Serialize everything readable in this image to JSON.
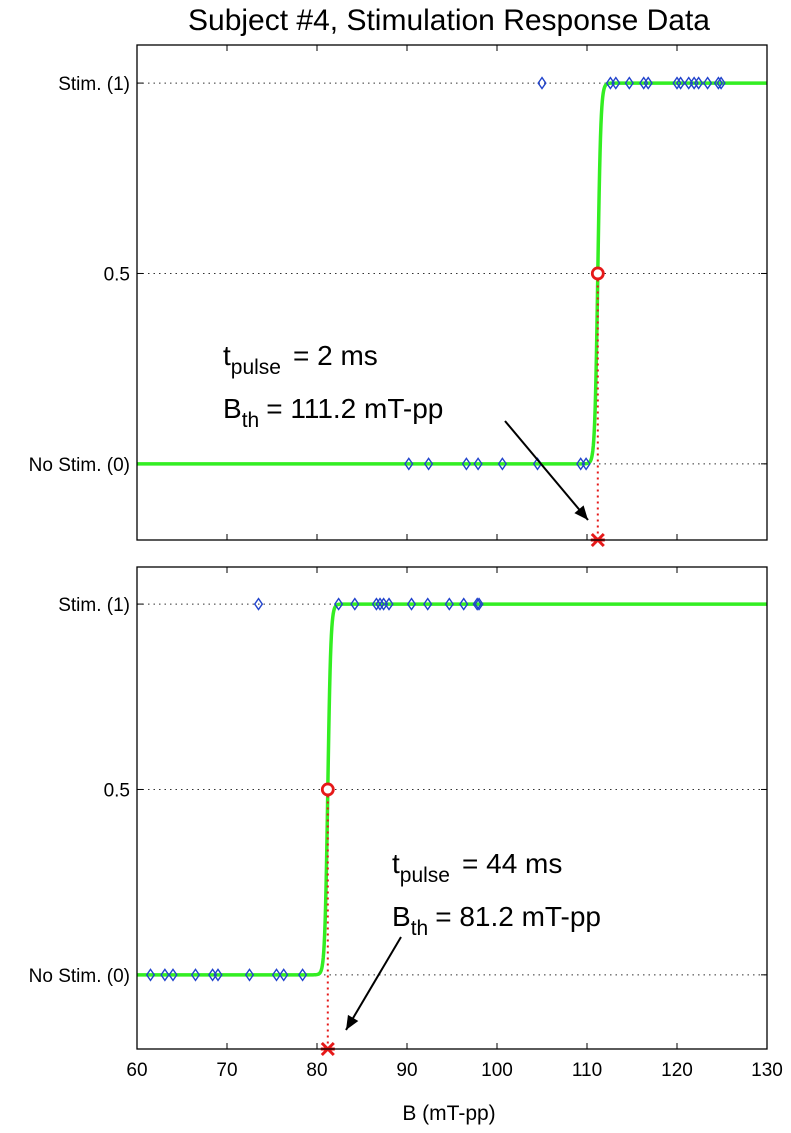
{
  "title": "Subject #4, Stimulation Response Data",
  "colors": {
    "fit": "#33ee22",
    "marker": "#2244cc",
    "threshold": "#e61919",
    "grid": "#333333"
  },
  "chart_data": [
    {
      "type": "scatter",
      "panel": "top",
      "xlim": [
        60,
        130
      ],
      "ylim": [
        -0.2,
        1.1
      ],
      "yticks": [
        0,
        0.5,
        1
      ],
      "ytick_labels": [
        "No Stim. (0)",
        "0.5",
        "Stim. (1)"
      ],
      "grid": "horizontal dotted",
      "series": [
        {
          "marker": "diamond",
          "points": [
            [
              90.2,
              0
            ],
            [
              92.4,
              0
            ],
            [
              96.6,
              0
            ],
            [
              97.9,
              0
            ],
            [
              100.6,
              0
            ],
            [
              104.5,
              0
            ],
            [
              109.3,
              0
            ],
            [
              109.9,
              0
            ],
            [
              105.0,
              1
            ],
            [
              112.6,
              1
            ],
            [
              113.2,
              1
            ],
            [
              114.7,
              1
            ],
            [
              116.3,
              1
            ],
            [
              116.8,
              1
            ],
            [
              120.0,
              1
            ],
            [
              120.4,
              1
            ],
            [
              121.3,
              1
            ],
            [
              121.9,
              1
            ],
            [
              122.4,
              1
            ],
            [
              123.4,
              1
            ],
            [
              124.6,
              1
            ],
            [
              124.9,
              1
            ]
          ]
        },
        {
          "line": "logistic fit",
          "threshold": 111.2,
          "slope": 6
        }
      ],
      "threshold_marker": {
        "x": 111.2,
        "y": 0.5
      },
      "annotation": {
        "pulse_base": "t",
        "pulse_sub": "pulse",
        "pulse_value": "= 2 ms",
        "bth_base": "B",
        "bth_sub": "th",
        "bth_value": "= 111.2 mT-pp"
      }
    },
    {
      "type": "scatter",
      "panel": "bottom",
      "xlim": [
        60,
        130
      ],
      "ylim": [
        -0.2,
        1.1
      ],
      "yticks": [
        0,
        0.5,
        1
      ],
      "ytick_labels": [
        "No Stim. (0)",
        "0.5",
        "Stim. (1)"
      ],
      "xticks": [
        60,
        70,
        80,
        90,
        100,
        110,
        120,
        130
      ],
      "xlabel": "B (mT-pp)",
      "grid": "horizontal dotted",
      "series": [
        {
          "marker": "diamond",
          "points": [
            [
              61.5,
              0
            ],
            [
              63.1,
              0
            ],
            [
              64.0,
              0
            ],
            [
              66.5,
              0
            ],
            [
              68.4,
              0
            ],
            [
              69.0,
              0
            ],
            [
              72.5,
              0
            ],
            [
              75.5,
              0
            ],
            [
              76.3,
              0
            ],
            [
              78.4,
              0
            ],
            [
              73.5,
              1
            ],
            [
              82.4,
              1
            ],
            [
              84.2,
              1
            ],
            [
              86.6,
              1
            ],
            [
              87.0,
              1
            ],
            [
              87.4,
              1
            ],
            [
              88.0,
              1
            ],
            [
              90.5,
              1
            ],
            [
              92.3,
              1
            ],
            [
              94.7,
              1
            ],
            [
              96.3,
              1
            ],
            [
              97.8,
              1
            ],
            [
              98.0,
              1
            ]
          ]
        },
        {
          "line": "logistic fit",
          "threshold": 81.2,
          "slope": 6
        }
      ],
      "threshold_marker": {
        "x": 81.2,
        "y": 0.5
      },
      "annotation": {
        "pulse_base": "t",
        "pulse_sub": "pulse",
        "pulse_value": "= 44 ms",
        "bth_base": "B",
        "bth_sub": "th",
        "bth_value": "= 81.2 mT-pp"
      }
    }
  ]
}
